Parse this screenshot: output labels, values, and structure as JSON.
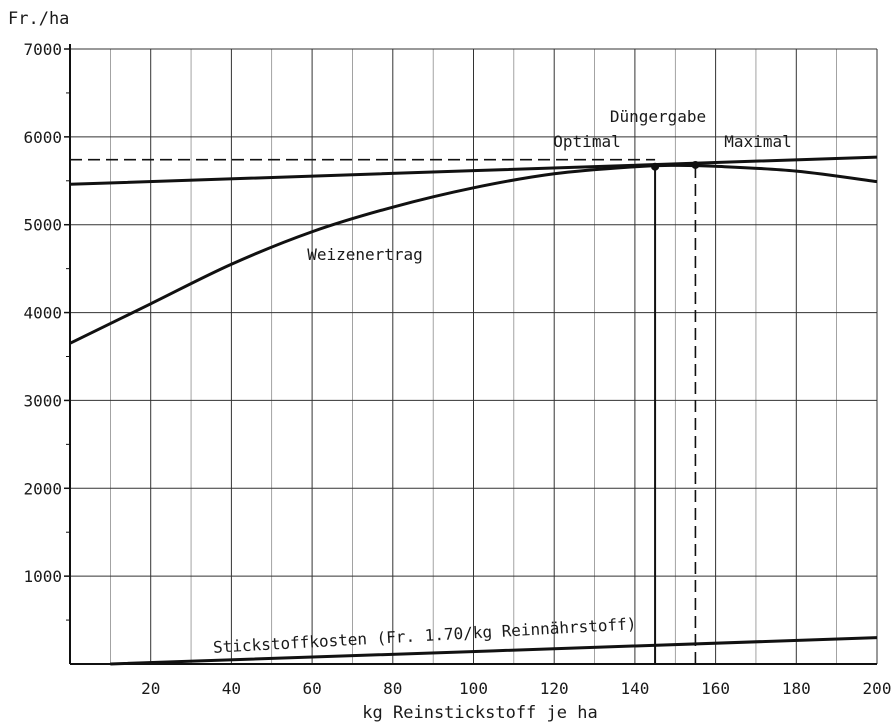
{
  "chart_data": {
    "type": "line",
    "title": "",
    "ylabel": "Fr./ha",
    "xlabel": "kg Reinstickstoff je ha",
    "xlim": [
      0,
      200
    ],
    "ylim": [
      0,
      7000
    ],
    "grid": true,
    "x_ticks": [
      "20",
      "40",
      "60",
      "80",
      "100",
      "120",
      "140",
      "160",
      "180",
      "200"
    ],
    "y_ticks": [
      "1000",
      "2000",
      "3000",
      "4000",
      "5000",
      "6000",
      "7000"
    ],
    "series": [
      {
        "name": "Weizenertrag",
        "style": "solid",
        "x": [
          0,
          20,
          40,
          60,
          80,
          100,
          120,
          140,
          150,
          160,
          180,
          200
        ],
        "y": [
          3650,
          4100,
          4550,
          4920,
          5200,
          5420,
          5580,
          5660,
          5675,
          5665,
          5610,
          5490
        ]
      },
      {
        "name": "",
        "style": "solid",
        "x": [
          0,
          200
        ],
        "y": [
          5460,
          5770
        ]
      },
      {
        "name": "Stickstoffkosten (Fr. 1.70/kg Reinnährstoff)",
        "style": "solid",
        "x": [
          10,
          200
        ],
        "y": [
          0,
          300
        ]
      }
    ],
    "reference_lines": [
      {
        "orientation": "horizontal",
        "style": "dashed",
        "y": 5740,
        "x_from": 0,
        "x_to": 145
      },
      {
        "orientation": "vertical",
        "style": "solid",
        "x": 145,
        "y_from": 0,
        "y_to": 5660
      },
      {
        "orientation": "vertical",
        "style": "dashed",
        "x": 155,
        "y_from": 0,
        "y_to": 5680
      }
    ],
    "points": [
      {
        "label": "Optimal",
        "x": 145,
        "y": 5660
      },
      {
        "label": "Maximal",
        "x": 155,
        "y": 5680
      }
    ],
    "annotations": {
      "heading": "Düngergabe",
      "optimal": "Optimal",
      "maximal": "Maximal",
      "yield_label": "Weizenertrag",
      "cost_label": "Stickstoffkosten (Fr. 1.70/kg Reinnährstoff)"
    }
  }
}
